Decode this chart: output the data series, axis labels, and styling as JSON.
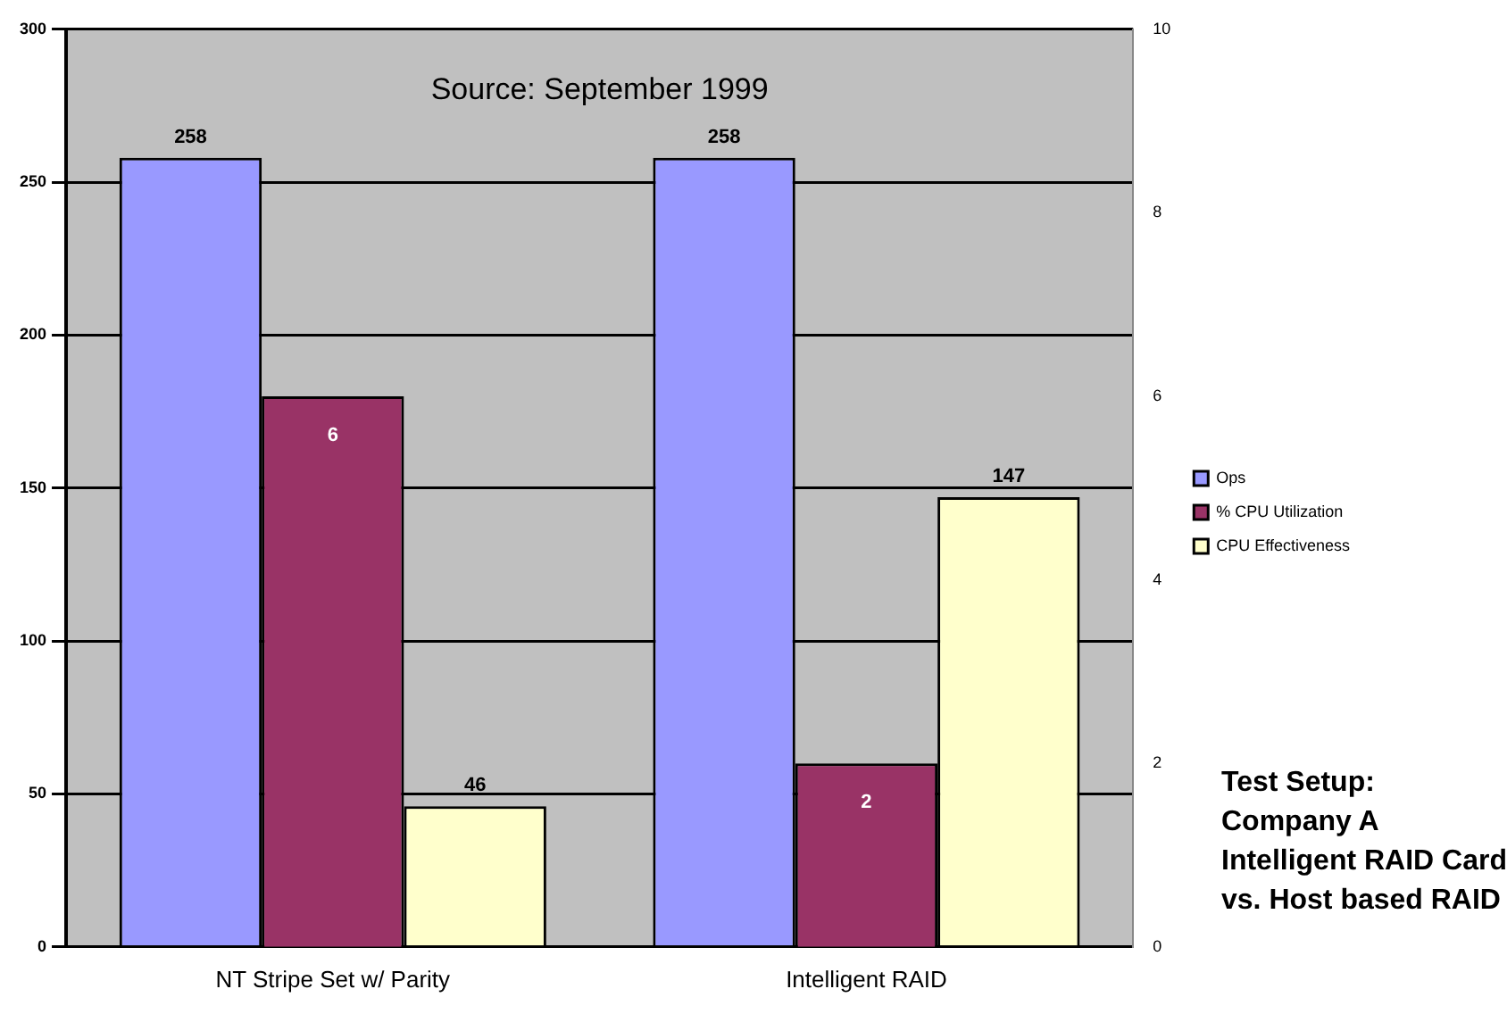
{
  "chart_data": {
    "type": "bar",
    "categories": [
      "NT Stripe Set w/ Parity",
      "Intelligent RAID"
    ],
    "series": [
      {
        "name": "Ops",
        "color": "#9999ff",
        "values": [
          258,
          258
        ]
      },
      {
        "name": "% CPU Utilization",
        "color": "#993366",
        "values": [
          6,
          2
        ],
        "axis": "y2"
      },
      {
        "name": "CPU Effectiveness",
        "color": "#ffffcc",
        "values": [
          46,
          147
        ]
      }
    ],
    "ylim": [
      0,
      300
    ],
    "yticks": [
      0,
      50,
      100,
      150,
      200,
      250,
      300
    ],
    "y2lim": [
      0,
      10
    ],
    "y2ticks": [
      0,
      2,
      4,
      6,
      8,
      10
    ],
    "grid": "y",
    "legend": "right",
    "data_labels": true,
    "annotations": [
      "Source: September 1999",
      "Test Setup: Company A Intelligent RAID Card vs. Host based RAID"
    ]
  }
}
